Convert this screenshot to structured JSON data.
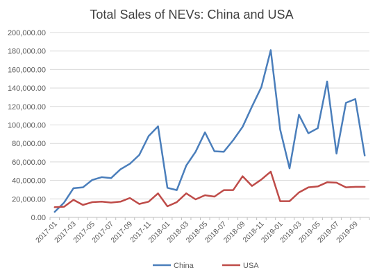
{
  "chart_data": {
    "type": "line",
    "title": "Total Sales of NEVs: China and USA",
    "xlabel": "",
    "ylabel": "",
    "ylim": [
      0,
      200000
    ],
    "y_ticks": [
      "0.00",
      "20,000.00",
      "40,000.00",
      "60,000.00",
      "80,000.00",
      "100,000.00",
      "120,000.00",
      "140,000.00",
      "160,000.00",
      "180,000.00",
      "200,000.00"
    ],
    "y_tick_values": [
      0,
      20000,
      40000,
      60000,
      80000,
      100000,
      120000,
      140000,
      160000,
      180000,
      200000
    ],
    "x": [
      "2017-01",
      "2017-02",
      "2017-03",
      "2017-04",
      "2017-05",
      "2017-06",
      "2017-07",
      "2017-08",
      "2017-09",
      "2017-10",
      "2017-11",
      "2017-12",
      "2018-01",
      "2018-02",
      "2018-03",
      "2018-04",
      "2018-05",
      "2018-06",
      "2018-07",
      "2018-08",
      "2018-09",
      "2018-10",
      "2018-11",
      "2018-12",
      "2019-01",
      "2019-02",
      "2019-03",
      "2019-04",
      "2019-05",
      "2019-06",
      "2019-07",
      "2019-08",
      "2019-09",
      "2019-10"
    ],
    "x_tick_labels": [
      "2017-01",
      "2017-03",
      "2017-05",
      "2017-07",
      "2017-09",
      "2017-11",
      "2018-01",
      "2018-03",
      "2018-05",
      "2018-07",
      "2018-09",
      "2018-11",
      "2019-01",
      "2019-03",
      "2019-05",
      "2019-07",
      "2019-09"
    ],
    "grid": true,
    "legend_position": "bottom",
    "series": [
      {
        "name": "China",
        "color": "#4a7ebb",
        "values": [
          6000,
          16000,
          31500,
          32500,
          40500,
          43500,
          42500,
          52000,
          58000,
          67500,
          88000,
          98500,
          32000,
          29500,
          56000,
          71000,
          92000,
          71500,
          71000,
          83500,
          98000,
          120000,
          141000,
          181000,
          95000,
          53000,
          111000,
          91000,
          96500,
          147000,
          69000,
          124000,
          128000,
          67000
        ]
      },
      {
        "name": "USA",
        "color": "#be4b48",
        "values": [
          11000,
          11500,
          19000,
          13500,
          16500,
          17000,
          16000,
          17000,
          21000,
          14500,
          17000,
          26000,
          12000,
          16500,
          26000,
          19500,
          24000,
          22500,
          29500,
          29500,
          44500,
          34000,
          41000,
          49500,
          17500,
          17500,
          27000,
          32500,
          33500,
          38000,
          37500,
          32500,
          33000,
          33000
        ]
      }
    ]
  }
}
